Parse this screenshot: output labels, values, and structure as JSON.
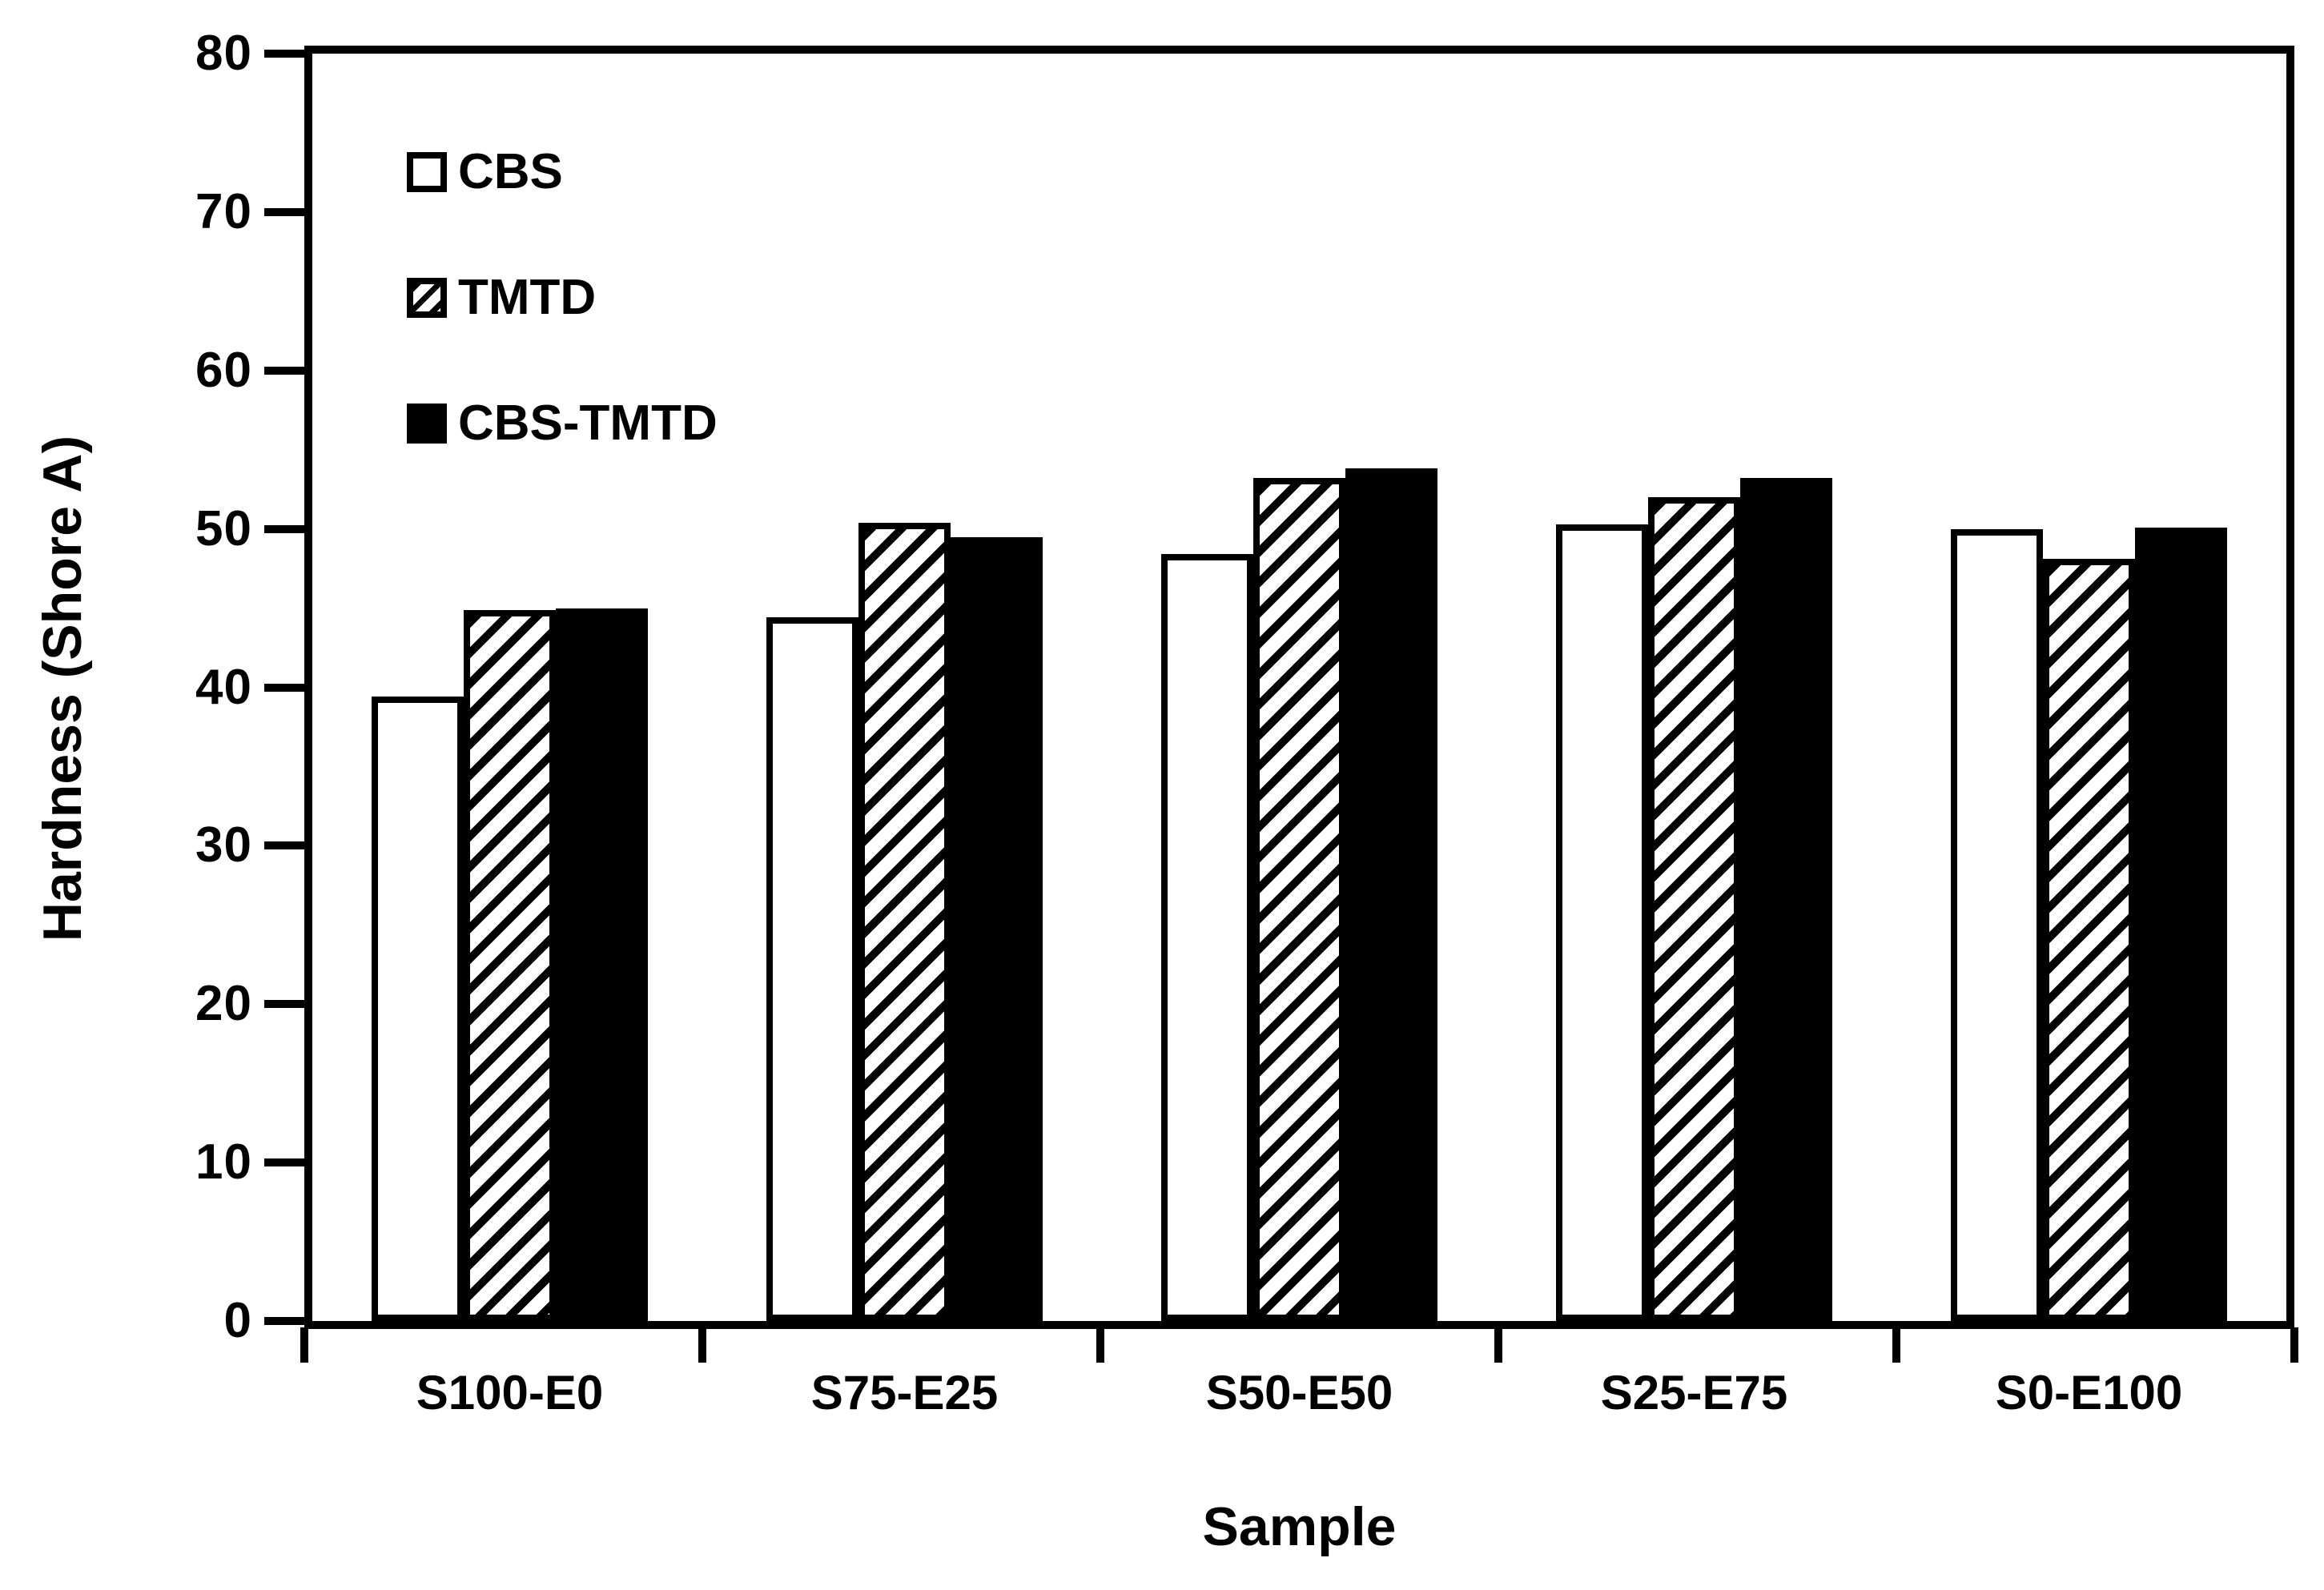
{
  "chart_data": {
    "type": "bar",
    "title": "",
    "xlabel": "Sample",
    "ylabel": "Hardness (Shore A)",
    "categories": [
      "S100-E0",
      "S75-E25",
      "S50-E50",
      "S25-E75",
      "S0-E100"
    ],
    "series": [
      {
        "name": "CBS",
        "fill": "white",
        "values": [
          39.4,
          44.4,
          48.4,
          50.3,
          50.0
        ]
      },
      {
        "name": "TMTD",
        "fill": "hatched",
        "values": [
          44.9,
          50.4,
          53.2,
          52.0,
          48.1
        ]
      },
      {
        "name": "CBS-TMTD",
        "fill": "black",
        "values": [
          45.0,
          49.5,
          53.8,
          53.2,
          50.1
        ]
      }
    ],
    "ylim": [
      0,
      80
    ],
    "ytick_step": 10,
    "y_ticks": [
      0,
      10,
      20,
      30,
      40,
      50,
      60,
      70,
      80
    ],
    "legend_position": "upper-left-inside",
    "grid": false,
    "colors": {
      "foreground": "#000000",
      "background": "#ffffff"
    }
  }
}
